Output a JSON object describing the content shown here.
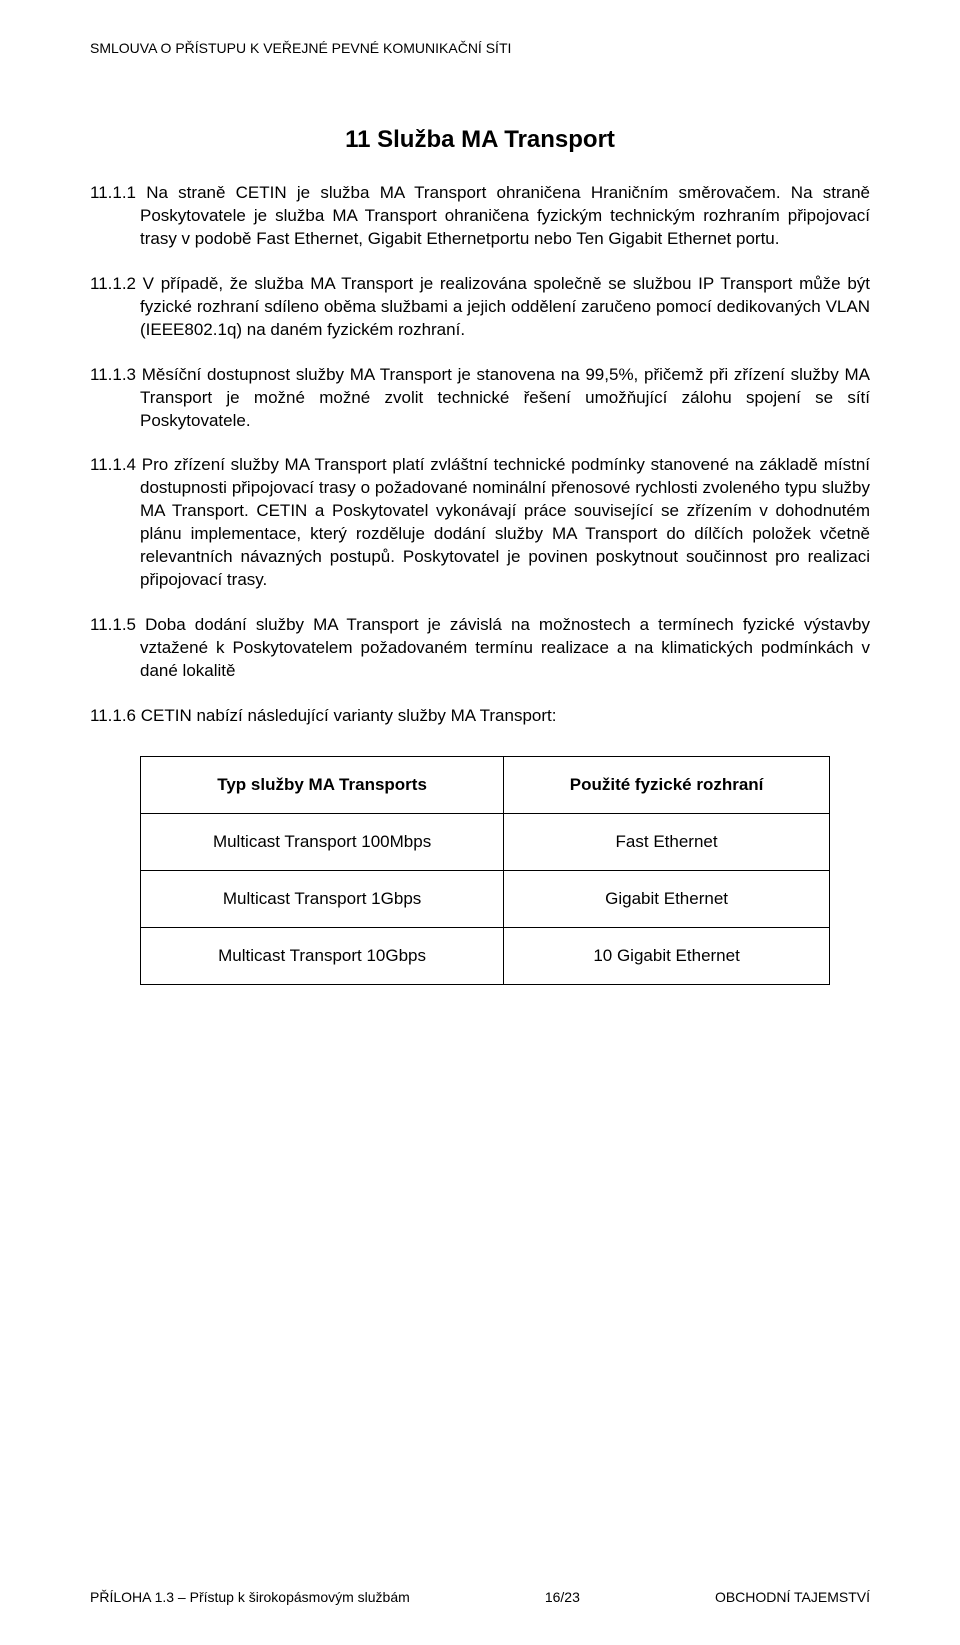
{
  "header": {
    "text": "SMLOUVA O PŘÍSTUPU K VEŘEJNÉ PEVNÉ KOMUNIKAČNÍ SÍTI"
  },
  "title": "11 Služba MA Transport",
  "paragraphs": {
    "p1": "11.1.1 Na straně CETIN je služba MA Transport ohraničena Hraničním směrovačem. Na straně Poskytovatele je služba MA Transport ohraničena fyzickým technickým rozhraním připojovací trasy v podobě Fast Ethernet, Gigabit Ethernetportu nebo Ten Gigabit Ethernet portu.",
    "p2": "11.1.2 V případě, že služba MA Transport je realizována společně se službou IP Transport může být fyzické rozhraní sdíleno oběma službami a jejich oddělení zaručeno pomocí dedikovaných VLAN (IEEE802.1q) na daném fyzickém rozhraní.",
    "p3": "11.1.3 Měsíční dostupnost služby MA Transport je stanovena na 99,5%, přičemž při zřízení služby MA Transport je možné možné zvolit technické řešení umožňující zálohu spojení se sítí Poskytovatele.",
    "p4": "11.1.4  Pro zřízení služby MA Transport platí zvláštní technické podmínky stanovené na základě místní dostupnosti připojovací trasy o požadované nominální přenosové rychlosti zvoleného typu služby MA Transport. CETIN a Poskytovatel vykonávají práce související se zřízením v dohodnutém plánu implementace, který rozděluje dodání služby MA Transport do dílčích položek včetně relevantních návazných postupů. Poskytovatel je povinen poskytnout součinnost pro realizaci připojovací trasy.",
    "p5": "11.1.5 Doba dodání služby MA Transport je závislá na možnostech a termínech fyzické výstavby vztažené k Poskytovatelem požadovaném termínu realizace a na klimatických podmínkách v dané lokalitě",
    "p6": "11.1.6 CETIN nabízí následující varianty služby MA Transport:"
  },
  "table": {
    "headers": {
      "col1": "Typ služby MA Transports",
      "col2": "Použité fyzické rozhraní"
    },
    "rows": [
      {
        "c1": "Multicast Transport 100Mbps",
        "c2": "Fast Ethernet"
      },
      {
        "c1": "Multicast Transport 1Gbps",
        "c2": "Gigabit Ethernet"
      },
      {
        "c1": "Multicast Transport 10Gbps",
        "c2": "10 Gigabit Ethernet"
      }
    ]
  },
  "footer": {
    "left": "PŘÍLOHA 1.3 – Přístup k širokopásmovým službám",
    "center": "16/23",
    "right": "OBCHODNÍ TAJEMSTVÍ"
  }
}
